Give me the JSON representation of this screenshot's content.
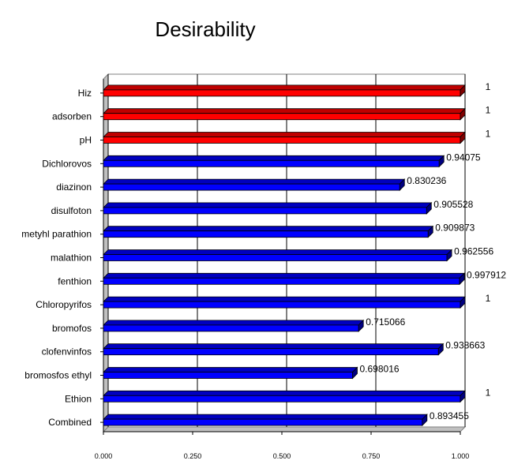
{
  "chart_data": {
    "type": "bar",
    "orientation": "horizontal",
    "title": "Desirability",
    "categories": [
      "Hiz",
      "adsorben",
      "pH",
      "Dichlorovos",
      "diazinon",
      "disulfoton",
      "metyhl parathion",
      "malathion",
      "fenthion",
      "Chloropyrifos",
      "bromofos",
      "clofenvinfos",
      "bromosfos ethyl",
      "Ethion",
      "Combined"
    ],
    "values": [
      1,
      1,
      1,
      0.94075,
      0.830236,
      0.905528,
      0.909873,
      0.962556,
      0.997912,
      1,
      0.715066,
      0.938663,
      0.698016,
      1,
      0.893455
    ],
    "value_labels": [
      "1",
      "1",
      "1",
      "0.94075",
      "0.830236",
      "0.905528",
      "0.909873",
      "0.962556",
      "0.997912",
      "1",
      "0.715066",
      "0.938663",
      "0.698016",
      "1",
      "0.893455"
    ],
    "bar_colors": [
      "#ff0000",
      "#ff0000",
      "#ff0000",
      "#0000ff",
      "#0000ff",
      "#0000ff",
      "#0000ff",
      "#0000ff",
      "#0000ff",
      "#0000ff",
      "#0000ff",
      "#0000ff",
      "#0000ff",
      "#0000ff",
      "#0000ff"
    ],
    "x_ticks": [
      "0.000",
      "0.250",
      "0.500",
      "0.750",
      "1.000"
    ],
    "xlim": [
      0,
      1
    ],
    "grid": true,
    "style": "3d",
    "xlabel": "",
    "ylabel": ""
  }
}
